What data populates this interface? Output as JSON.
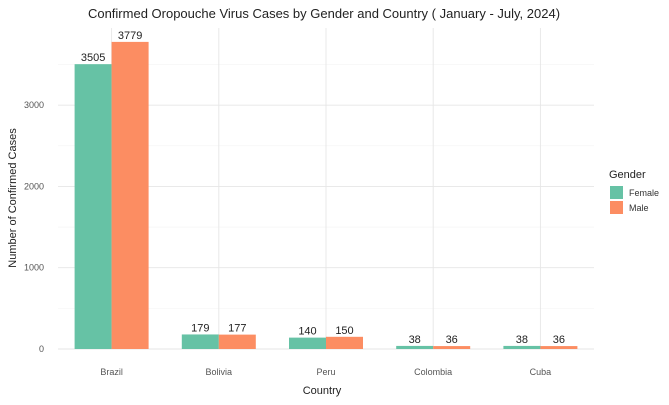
{
  "chart_data": {
    "type": "bar",
    "title": "Confirmed Oropouche Virus Cases by Gender and Country ( January - July, 2024)",
    "xlabel": "Country",
    "ylabel": "Number of Confirmed Cases",
    "categories": [
      "Brazil",
      "Bolivia",
      "Peru",
      "Colombia",
      "Cuba"
    ],
    "series": [
      {
        "name": "Female",
        "values": [
          3505,
          179,
          140,
          38,
          38
        ],
        "color": "#66C2A5"
      },
      {
        "name": "Male",
        "values": [
          3779,
          177,
          150,
          36,
          36
        ],
        "color": "#FC8D62"
      }
    ],
    "ylim": [
      0,
      3950
    ],
    "yticks": [
      0,
      1000,
      2000,
      3000
    ],
    "grid": true,
    "legend": {
      "title": "Gender",
      "placement": "right"
    }
  }
}
